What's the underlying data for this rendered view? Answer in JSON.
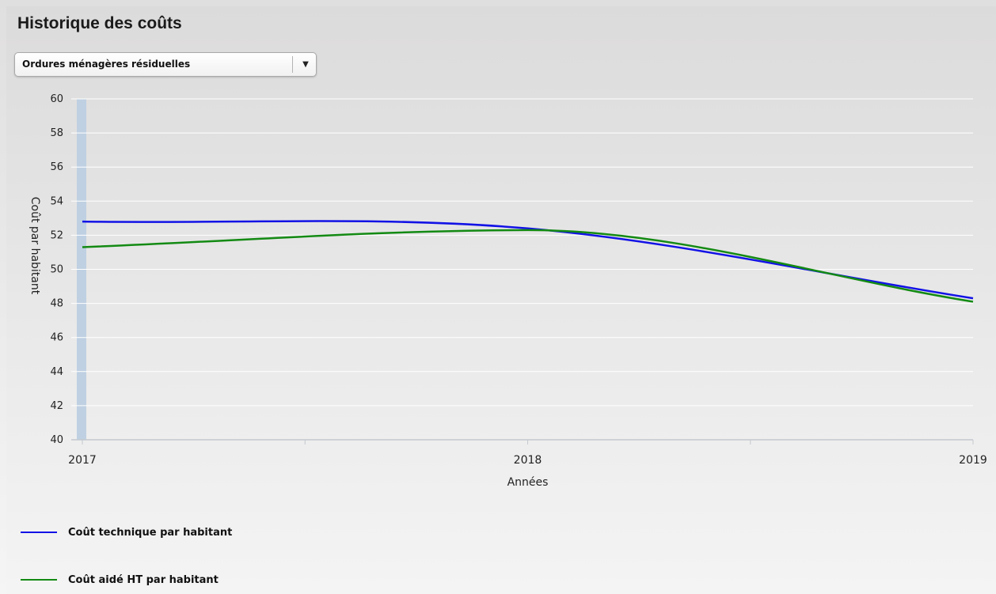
{
  "header": {
    "title": "Historique des coûts"
  },
  "filter": {
    "selected": "Ordures ménagères résiduelles",
    "arrow_icon": "triangle-down-icon"
  },
  "chart_data": {
    "type": "line",
    "title": "",
    "xlabel": "Années",
    "ylabel": "Coût par habitant",
    "x": [
      "2017",
      "2018",
      "2019"
    ],
    "ylim": [
      40,
      60
    ],
    "yticks": [
      40,
      42,
      44,
      46,
      48,
      50,
      52,
      54,
      56,
      58,
      60
    ],
    "grid": true,
    "legend_position": "bottom-left",
    "series": [
      {
        "name": "Coût technique par habitant",
        "values": [
          52.8,
          52.4,
          48.3
        ],
        "color": "#1212e6"
      },
      {
        "name": "Coût aidé HT par habitant",
        "values": [
          51.3,
          52.3,
          48.1
        ],
        "color": "#138a13"
      }
    ]
  }
}
